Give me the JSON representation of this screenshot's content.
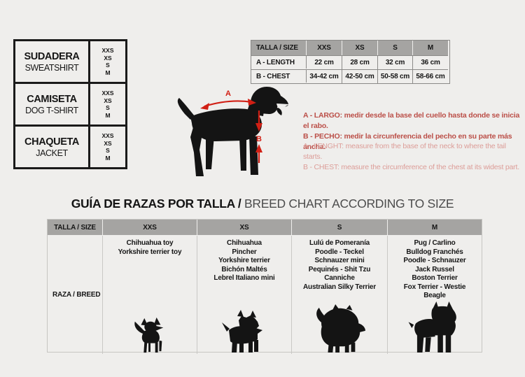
{
  "product_table": {
    "rows": [
      {
        "name_es": "SUDADERA",
        "name_en": "SWEATSHIRT",
        "sizes": [
          "XXS",
          "XS",
          "S",
          "M"
        ]
      },
      {
        "name_es": "CAMISETA",
        "name_en": "DOG T-SHIRT",
        "sizes": [
          "XXS",
          "XS",
          "S",
          "M"
        ]
      },
      {
        "name_es": "CHAQUETA",
        "name_en": "JACKET",
        "sizes": [
          "XXS",
          "XS",
          "S",
          "M"
        ]
      }
    ]
  },
  "size_table": {
    "header": [
      "TALLA /  SIZE",
      "XXS",
      "XS",
      "S",
      "M"
    ],
    "rows": [
      {
        "label": "A - LENGTH",
        "values": [
          "22 cm",
          "28 cm",
          "32 cm",
          "36 cm"
        ]
      },
      {
        "label": "B - CHEST",
        "values": [
          "34-42 cm",
          "42-50 cm",
          "50-58 cm",
          "58-66 cm"
        ]
      }
    ]
  },
  "diagram": {
    "label_a": "A",
    "label_b": "B"
  },
  "notes_es": [
    "A - LARGO: medir desde la base del cuello hasta donde se inicia el rabo.",
    "B - PECHO: medir la circunferencia del pecho en su parte más ancha."
  ],
  "notes_en": [
    "A - LENGHT: measure from the base of the neck to where the tail starts.",
    "B - CHEST: measure the circumference of the chest at its widest part."
  ],
  "breed_chart": {
    "title_es": "GUÍA DE RAZAS POR TALLA / ",
    "title_en": "BREED CHART ACCORDING TO SIZE",
    "header": [
      "TALLA /  SIZE",
      "XXS",
      "XS",
      "S",
      "M"
    ],
    "row_label": "RAZA / BREED",
    "columns": [
      {
        "size": "XXS",
        "breeds": [
          "Chihuahua toy",
          "Yorkshire terrier toy"
        ],
        "dog_icon": "chihuahua-silhouette"
      },
      {
        "size": "XS",
        "breeds": [
          "Chihuahua",
          "Pincher",
          "Yorkshire terrier",
          "Bichón Maltés",
          "Lebrel Italiano mini"
        ],
        "dog_icon": "yorkshire-terrier-silhouette"
      },
      {
        "size": "S",
        "breeds": [
          "Lulú de Pomeranía",
          "Poodle  -  Teckel",
          "Schnauzer mini",
          "Pequinés  -  Shit Tzu",
          "Canniche",
          "Australian Silky Terrier"
        ],
        "dog_icon": "pomeranian-silhouette"
      },
      {
        "size": "M",
        "breeds": [
          "Pug / Carlino",
          "Bulldog Franchés",
          "Poodle  -  Schnauzer",
          "Jack Russel",
          "Boston Terrier",
          "Fox Terrier  -  Westie",
          "Beagle"
        ],
        "dog_icon": "french-bulldog-silhouette"
      }
    ]
  },
  "colors": {
    "background": "#efeeec",
    "ink_black": "#141414",
    "header_gray": "#a5a4a2",
    "note_red": "#bb4f48",
    "note_red_light": "#dc9d98",
    "arrow_red": "#d11f14"
  }
}
